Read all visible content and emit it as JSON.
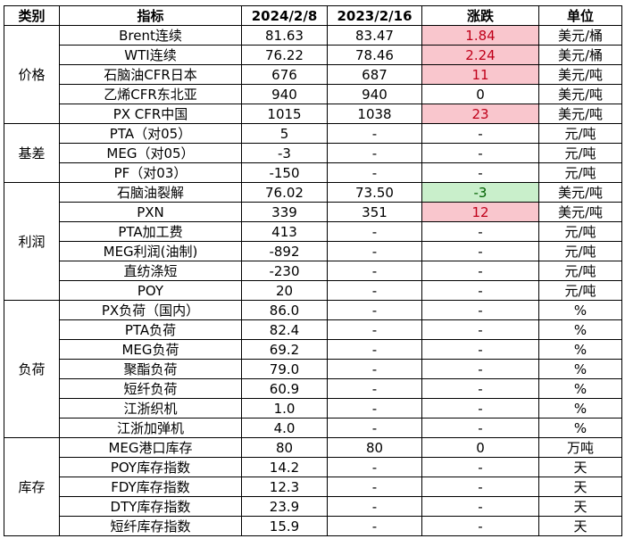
{
  "header": {
    "category": "类别",
    "indicator": "指标",
    "date1": "2024/2/8",
    "date2": "2023/2/16",
    "change": "涨跌",
    "unit": "单位"
  },
  "groups": [
    {
      "category": "价格",
      "rows": [
        {
          "indicator": "Brent连续",
          "v1": "81.63",
          "v2": "83.47",
          "change": "1.84",
          "trend": "up",
          "unit": "美元/桶"
        },
        {
          "indicator": "WTI连续",
          "v1": "76.22",
          "v2": "78.46",
          "change": "2.24",
          "trend": "up",
          "unit": "美元/桶"
        },
        {
          "indicator": "石脑油CFR日本",
          "v1": "676",
          "v2": "687",
          "change": "11",
          "trend": "up",
          "unit": "美元/吨"
        },
        {
          "indicator": "乙烯CFR东北亚",
          "v1": "940",
          "v2": "940",
          "change": "0",
          "trend": "none",
          "unit": "美元/吨"
        },
        {
          "indicator": "PX CFR中国",
          "v1": "1015",
          "v2": "1038",
          "change": "23",
          "trend": "up",
          "unit": "美元/吨"
        }
      ]
    },
    {
      "category": "基差",
      "rows": [
        {
          "indicator": "PTA（对05）",
          "v1": "5",
          "v2": "-",
          "change": "-",
          "trend": "none",
          "unit": "元/吨"
        },
        {
          "indicator": "MEG（对05）",
          "v1": "-3",
          "v2": "-",
          "change": "-",
          "trend": "none",
          "unit": "元/吨"
        },
        {
          "indicator": "PF（对03）",
          "v1": "-150",
          "v2": "-",
          "change": "-",
          "trend": "none",
          "unit": "元/吨"
        }
      ]
    },
    {
      "category": "利润",
      "rows": [
        {
          "indicator": "石脑油裂解",
          "v1": "76.02",
          "v2": "73.50",
          "change": "-3",
          "trend": "down",
          "unit": "美元/吨"
        },
        {
          "indicator": "PXN",
          "v1": "339",
          "v2": "351",
          "change": "12",
          "trend": "up",
          "unit": "美元/吨"
        },
        {
          "indicator": "PTA加工费",
          "v1": "413",
          "v2": "-",
          "change": "-",
          "trend": "none",
          "unit": "元/吨"
        },
        {
          "indicator": "MEG利润(油制)",
          "v1": "-892",
          "v2": "-",
          "change": "-",
          "trend": "none",
          "unit": "元/吨"
        },
        {
          "indicator": "直纺涤短",
          "v1": "-230",
          "v2": "-",
          "change": "-",
          "trend": "none",
          "unit": "元/吨"
        },
        {
          "indicator": "POY",
          "v1": "20",
          "v2": "-",
          "change": "-",
          "trend": "none",
          "unit": "元/吨"
        }
      ]
    },
    {
      "category": "负荷",
      "rows": [
        {
          "indicator": "PX负荷（国内）",
          "v1": "86.0",
          "v2": "-",
          "change": "-",
          "trend": "none",
          "unit": "%"
        },
        {
          "indicator": "PTA负荷",
          "v1": "82.4",
          "v2": "-",
          "change": "-",
          "trend": "none",
          "unit": "%"
        },
        {
          "indicator": "MEG负荷",
          "v1": "69.2",
          "v2": "-",
          "change": "-",
          "trend": "none",
          "unit": "%"
        },
        {
          "indicator": "聚酯负荷",
          "v1": "79.0",
          "v2": "-",
          "change": "-",
          "trend": "none",
          "unit": "%"
        },
        {
          "indicator": "短纤负荷",
          "v1": "60.9",
          "v2": "-",
          "change": "-",
          "trend": "none",
          "unit": "%"
        },
        {
          "indicator": "江浙织机",
          "v1": "1.0",
          "v2": "-",
          "change": "-",
          "trend": "none",
          "unit": "%"
        },
        {
          "indicator": "江浙加弹机",
          "v1": "4.0",
          "v2": "-",
          "change": "-",
          "trend": "none",
          "unit": "%"
        }
      ]
    },
    {
      "category": "库存",
      "rows": [
        {
          "indicator": "MEG港口库存",
          "v1": "80",
          "v2": "80",
          "change": "0",
          "trend": "none",
          "unit": "万吨"
        },
        {
          "indicator": "POY库存指数",
          "v1": "14.2",
          "v2": "-",
          "change": "-",
          "trend": "none",
          "unit": "天"
        },
        {
          "indicator": "FDY库存指数",
          "v1": "12.3",
          "v2": "-",
          "change": "-",
          "trend": "none",
          "unit": "天"
        },
        {
          "indicator": "DTY库存指数",
          "v1": "23.9",
          "v2": "-",
          "change": "-",
          "trend": "none",
          "unit": "天"
        },
        {
          "indicator": "短纤库存指数",
          "v1": "15.9",
          "v2": "-",
          "change": "-",
          "trend": "none",
          "unit": "天"
        }
      ]
    }
  ],
  "colors": {
    "up_bg": "#f9c6cd",
    "up_text": "#c0001a",
    "down_bg": "#c9efcb",
    "down_text": "#006100"
  }
}
